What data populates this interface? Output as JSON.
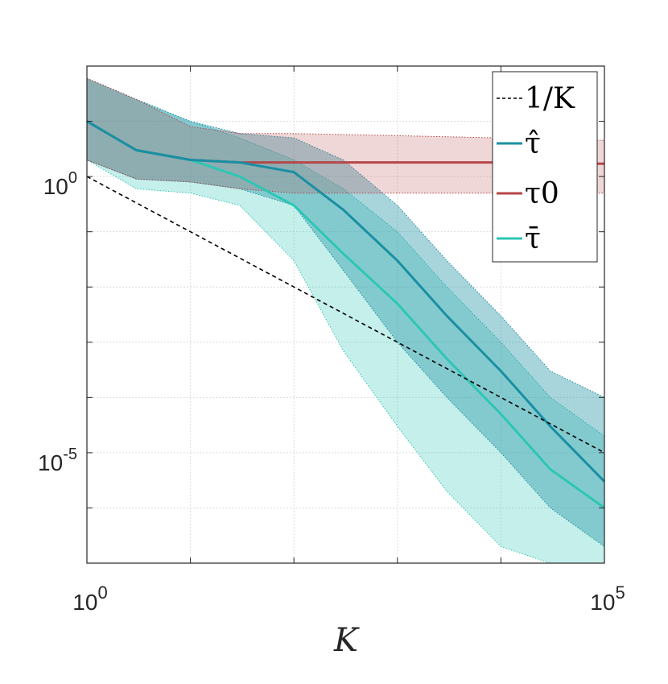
{
  "chart_data": {
    "type": "line",
    "xscale": "log",
    "yscale": "log",
    "xlim": [
      1,
      100000
    ],
    "ylim": [
      1e-07,
      100
    ],
    "xlabel": "K",
    "ylabel": "",
    "x_tick_labels": [
      {
        "value": 1,
        "base": "10",
        "exp": "0"
      },
      {
        "value": 100000,
        "base": "10",
        "exp": "5"
      }
    ],
    "y_tick_labels": [
      {
        "value": 1,
        "base": "10",
        "exp": "0"
      },
      {
        "value": 1e-05,
        "base": "10",
        "exp": "-5"
      }
    ],
    "grid": true,
    "legend_position": "top-right",
    "colors": {
      "ref": "#000000",
      "tau_hat": "#1a8fa3",
      "tau0": "#b5474a",
      "tau_bar": "#2cc7b5"
    },
    "series": [
      {
        "key": "ref",
        "name": "1/K",
        "style": "dashed",
        "x": [
          1,
          100000
        ],
        "y": [
          1,
          1e-05
        ]
      },
      {
        "key": "tau0",
        "name": "τ0",
        "style": "solid",
        "x": [
          1,
          3,
          10,
          30,
          100,
          1000,
          10000,
          100000
        ],
        "y": [
          10,
          3,
          2,
          1.8,
          1.8,
          1.8,
          1.8,
          1.7
        ],
        "band_upper": [
          60,
          25,
          8,
          6,
          6,
          5.5,
          5,
          4.5
        ],
        "band_lower": [
          2,
          0.9,
          0.8,
          0.6,
          0.5,
          0.5,
          0.5,
          0.5
        ]
      },
      {
        "key": "tau_hat",
        "name": "τ̂",
        "style": "solid",
        "x": [
          1,
          3,
          10,
          30,
          100,
          300,
          1000,
          3000,
          10000,
          30000,
          100000
        ],
        "y": [
          10,
          3,
          2,
          1.8,
          1.2,
          0.25,
          0.03,
          0.003,
          0.0003,
          3e-05,
          3e-06
        ],
        "band_upper": [
          60,
          25,
          10,
          6,
          5,
          2,
          0.3,
          0.03,
          0.003,
          0.0003,
          0.0001
        ],
        "band_lower": [
          2,
          0.9,
          0.8,
          0.6,
          0.3,
          0.02,
          0.001,
          0.0001,
          1e-05,
          1e-06,
          2e-07
        ]
      },
      {
        "key": "tau_bar",
        "name": "τ̄",
        "style": "solid",
        "x": [
          1,
          3,
          10,
          30,
          100,
          300,
          1000,
          3000,
          10000,
          30000,
          100000
        ],
        "y": [
          10,
          3,
          2,
          1,
          0.3,
          0.04,
          0.005,
          0.0005,
          5e-05,
          5e-06,
          1e-06
        ],
        "band_upper": [
          60,
          25,
          10,
          5,
          2,
          0.6,
          0.1,
          0.01,
          0.001,
          0.0001,
          2e-05
        ],
        "band_lower": [
          2,
          0.6,
          0.5,
          0.3,
          0.03,
          0.0007,
          3e-05,
          2e-06,
          2e-07,
          3e-08,
          1e-09
        ]
      }
    ],
    "legend_order": [
      "ref",
      "tau_hat",
      "tau0",
      "tau_bar"
    ]
  }
}
